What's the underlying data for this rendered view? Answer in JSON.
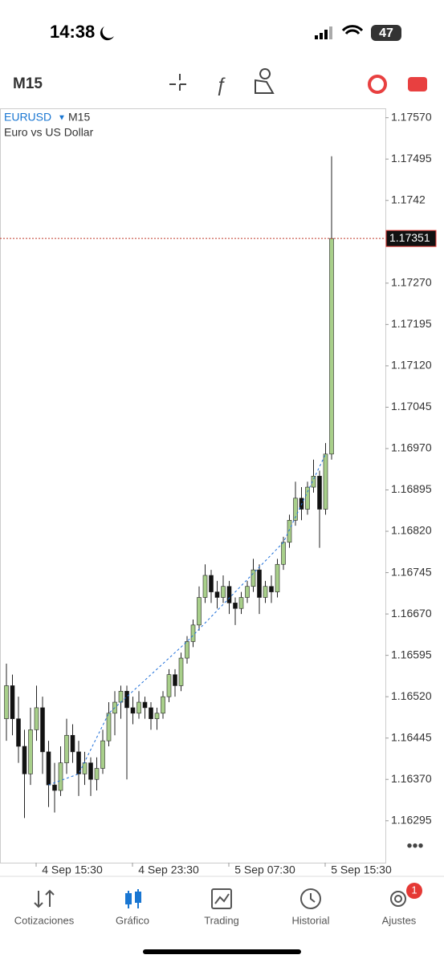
{
  "status": {
    "time": "14:38",
    "battery": "47"
  },
  "toolbar": {
    "timeframe": "M15"
  },
  "chart_data": {
    "type": "candlestick",
    "symbol": "EURUSD",
    "timeframe": "M15",
    "description": "Euro vs US Dollar",
    "ylim": [
      1.16219,
      1.17587
    ],
    "yticks": [
      {
        "value": 1.1757,
        "label": "1.17570"
      },
      1.17495,
      1.1742,
      {
        "value": 1.1727,
        "label": "1.17270"
      },
      1.17195,
      {
        "value": 1.1712,
        "label": "1.17120"
      },
      1.17045,
      {
        "value": 1.1697,
        "label": "1.16970"
      },
      1.16895,
      {
        "value": 1.1682,
        "label": "1.16820"
      },
      1.16745,
      {
        "value": 1.1667,
        "label": "1.16670"
      },
      1.16595,
      {
        "value": 1.1652,
        "label": "1.16520"
      },
      1.16445,
      {
        "value": 1.1637,
        "label": "1.16370"
      },
      1.16295
    ],
    "xticks": [
      "4 Sep 15:30",
      "4 Sep 23:30",
      "5 Sep 07:30",
      "5 Sep 15:30"
    ],
    "current_price": 1.17351,
    "candles": [
      [
        1.1648,
        1.1658,
        1.1644,
        1.1654
      ],
      [
        1.1654,
        1.1656,
        1.1645,
        1.1648
      ],
      [
        1.1648,
        1.1652,
        1.164,
        1.1643
      ],
      [
        1.1643,
        1.1646,
        1.163,
        1.1638
      ],
      [
        1.1638,
        1.165,
        1.1636,
        1.1646
      ],
      [
        1.1646,
        1.1654,
        1.1644,
        1.165
      ],
      [
        1.165,
        1.1652,
        1.1638,
        1.1642
      ],
      [
        1.1642,
        1.1644,
        1.1632,
        1.1636
      ],
      [
        1.1636,
        1.164,
        1.1631,
        1.1635
      ],
      [
        1.1635,
        1.1643,
        1.1634,
        1.164
      ],
      [
        1.164,
        1.1648,
        1.1638,
        1.1645
      ],
      [
        1.1645,
        1.1647,
        1.164,
        1.1642
      ],
      [
        1.1642,
        1.1644,
        1.1634,
        1.1638
      ],
      [
        1.1638,
        1.1642,
        1.1636,
        1.164
      ],
      [
        1.164,
        1.1641,
        1.1634,
        1.1637
      ],
      [
        1.1637,
        1.1641,
        1.1635,
        1.1639
      ],
      [
        1.1639,
        1.1646,
        1.1638,
        1.1644
      ],
      [
        1.1644,
        1.1651,
        1.1643,
        1.1649
      ],
      [
        1.1649,
        1.1653,
        1.1645,
        1.1651
      ],
      [
        1.1651,
        1.1654,
        1.1648,
        1.1653
      ],
      [
        1.1653,
        1.1654,
        1.1637,
        1.165
      ],
      [
        1.165,
        1.1652,
        1.1647,
        1.1649
      ],
      [
        1.1649,
        1.1653,
        1.1648,
        1.1651
      ],
      [
        1.1651,
        1.1652,
        1.1648,
        1.165
      ],
      [
        1.165,
        1.1651,
        1.1646,
        1.1648
      ],
      [
        1.1648,
        1.165,
        1.1646,
        1.1649
      ],
      [
        1.1649,
        1.1653,
        1.1648,
        1.1652
      ],
      [
        1.1652,
        1.1657,
        1.1651,
        1.1656
      ],
      [
        1.1656,
        1.1657,
        1.1652,
        1.1654
      ],
      [
        1.1654,
        1.166,
        1.1653,
        1.1659
      ],
      [
        1.1659,
        1.1663,
        1.1658,
        1.1662
      ],
      [
        1.1662,
        1.1666,
        1.1661,
        1.1665
      ],
      [
        1.1665,
        1.1672,
        1.1664,
        1.167
      ],
      [
        1.167,
        1.1676,
        1.1669,
        1.1674
      ],
      [
        1.1674,
        1.1675,
        1.1669,
        1.1671
      ],
      [
        1.1671,
        1.1673,
        1.1668,
        1.167
      ],
      [
        1.167,
        1.1674,
        1.1669,
        1.1672
      ],
      [
        1.1672,
        1.1673,
        1.1667,
        1.1669
      ],
      [
        1.1669,
        1.167,
        1.1665,
        1.1668
      ],
      [
        1.1668,
        1.1671,
        1.1667,
        1.167
      ],
      [
        1.167,
        1.1673,
        1.1669,
        1.1672
      ],
      [
        1.1672,
        1.1677,
        1.1671,
        1.1675
      ],
      [
        1.1675,
        1.1676,
        1.1667,
        1.167
      ],
      [
        1.167,
        1.1673,
        1.1669,
        1.1672
      ],
      [
        1.1672,
        1.1674,
        1.1669,
        1.1671
      ],
      [
        1.1671,
        1.1677,
        1.167,
        1.1676
      ],
      [
        1.1676,
        1.1681,
        1.1675,
        1.168
      ],
      [
        1.168,
        1.1685,
        1.1679,
        1.1684
      ],
      [
        1.1684,
        1.1691,
        1.1683,
        1.1688
      ],
      [
        1.1688,
        1.169,
        1.1684,
        1.1686
      ],
      [
        1.1686,
        1.1691,
        1.1685,
        1.169
      ],
      [
        1.169,
        1.1695,
        1.1689,
        1.1692
      ],
      [
        1.1692,
        1.1693,
        1.1679,
        1.1686
      ],
      [
        1.1686,
        1.1698,
        1.1685,
        1.1696
      ],
      [
        1.1696,
        1.175,
        1.1695,
        1.17351
      ]
    ]
  },
  "nav": {
    "items": [
      "Cotizaciones",
      "Gráfico",
      "Trading",
      "Historial",
      "Ajustes"
    ],
    "badge": "1"
  }
}
